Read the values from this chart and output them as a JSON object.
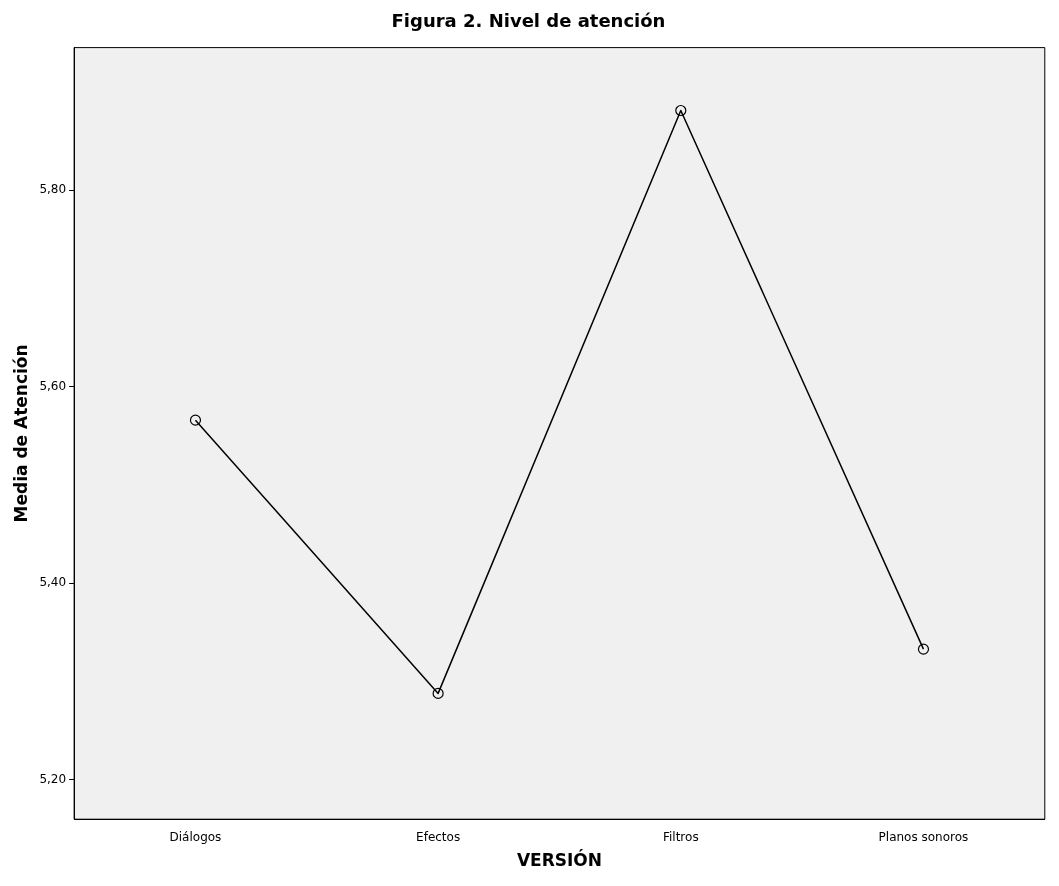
{
  "chart_data": {
    "type": "line",
    "title": "Figura 2. Nivel de atención",
    "xlabel": "VERSIÓN",
    "ylabel": "Media de Atención",
    "categories": [
      "Diálogos",
      "Efectos",
      "Filtros",
      "Planos sonoros"
    ],
    "series": [
      {
        "color": "#000000",
        "values": [
          5.566,
          5.288,
          5.881,
          5.333
        ]
      }
    ],
    "ylim": [
      5.16,
      5.945
    ],
    "yticks": [
      {
        "value": 5.2,
        "label": "5,20"
      },
      {
        "value": 5.4,
        "label": "5,40"
      },
      {
        "value": 5.6,
        "label": "5,60"
      },
      {
        "value": 5.8,
        "label": "5,80"
      }
    ],
    "grid": false,
    "legend": false,
    "marker": "circle",
    "line_style": "solid"
  }
}
